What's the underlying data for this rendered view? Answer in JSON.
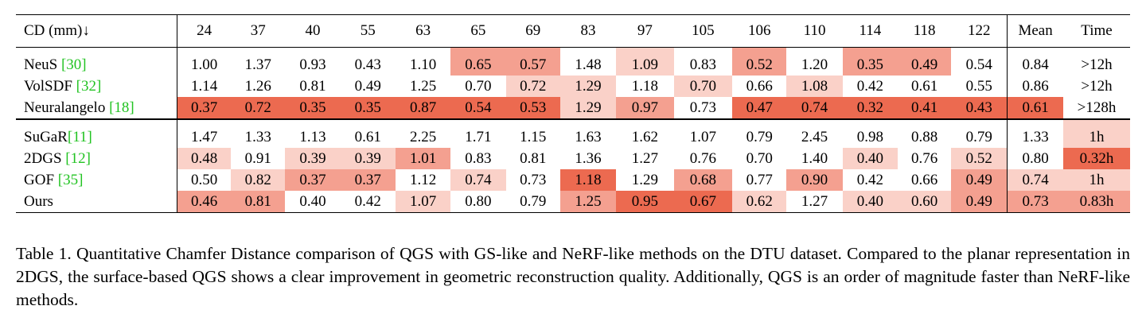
{
  "table": {
    "corner": "CD (mm)↓",
    "columns": [
      "24",
      "37",
      "40",
      "55",
      "63",
      "65",
      "69",
      "83",
      "97",
      "105",
      "106",
      "110",
      "114",
      "118",
      "122",
      "Mean",
      "Time"
    ],
    "groups": [
      [
        {
          "name": "NeuS ",
          "ref": "[30]",
          "cells": [
            "1.00",
            "1.37",
            "0.93",
            "0.43",
            "1.10",
            "0.65",
            "0.57",
            "1.48",
            "1.09",
            "0.83",
            "0.52",
            "1.20",
            "0.35",
            "0.49",
            "0.54",
            "0.84",
            ">12h"
          ],
          "shade": [
            0,
            0,
            0,
            0,
            0,
            2,
            2,
            0,
            3,
            0,
            2,
            0,
            2,
            2,
            0,
            0,
            0
          ]
        },
        {
          "name": "VolSDF ",
          "ref": "[32]",
          "cells": [
            "1.14",
            "1.26",
            "0.81",
            "0.49",
            "1.25",
            "0.70",
            "0.72",
            "1.29",
            "1.18",
            "0.70",
            "0.66",
            "1.08",
            "0.42",
            "0.61",
            "0.55",
            "0.86",
            ">12h"
          ],
          "shade": [
            0,
            0,
            0,
            0,
            0,
            0,
            3,
            3,
            0,
            3,
            0,
            3,
            0,
            0,
            0,
            0,
            0
          ]
        },
        {
          "name": "Neuralangelo ",
          "ref": "[18]",
          "cells": [
            "0.37",
            "0.72",
            "0.35",
            "0.35",
            "0.87",
            "0.54",
            "0.53",
            "1.29",
            "0.97",
            "0.73",
            "0.47",
            "0.74",
            "0.32",
            "0.41",
            "0.43",
            "0.61",
            ">128h"
          ],
          "shade": [
            1,
            1,
            1,
            1,
            1,
            1,
            1,
            3,
            2,
            0,
            1,
            1,
            1,
            1,
            1,
            1,
            0
          ]
        }
      ],
      [
        {
          "name": "SuGaR",
          "ref": "[11]",
          "cells": [
            "1.47",
            "1.33",
            "1.13",
            "0.61",
            "2.25",
            "1.71",
            "1.15",
            "1.63",
            "1.62",
            "1.07",
            "0.79",
            "2.45",
            "0.98",
            "0.88",
            "0.79",
            "1.33",
            "1h"
          ],
          "shade": [
            0,
            0,
            0,
            0,
            0,
            0,
            0,
            0,
            0,
            0,
            0,
            0,
            0,
            0,
            0,
            0,
            3
          ]
        },
        {
          "name": "2DGS ",
          "ref": "[12]",
          "cells": [
            "0.48",
            "0.91",
            "0.39",
            "0.39",
            "1.01",
            "0.83",
            "0.81",
            "1.36",
            "1.27",
            "0.76",
            "0.70",
            "1.40",
            "0.40",
            "0.76",
            "0.52",
            "0.80",
            "0.32h"
          ],
          "shade": [
            3,
            0,
            3,
            3,
            2,
            0,
            0,
            0,
            0,
            0,
            0,
            0,
            3,
            0,
            3,
            0,
            1
          ]
        },
        {
          "name": "GOF ",
          "ref": "[35]",
          "cells": [
            "0.50",
            "0.82",
            "0.37",
            "0.37",
            "1.12",
            "0.74",
            "0.73",
            "1.18",
            "1.29",
            "0.68",
            "0.77",
            "0.90",
            "0.42",
            "0.66",
            "0.49",
            "0.74",
            "1h"
          ],
          "shade": [
            0,
            3,
            2,
            2,
            0,
            3,
            0,
            1,
            0,
            2,
            0,
            2,
            0,
            0,
            2,
            3,
            3
          ]
        },
        {
          "name": "Ours",
          "ref": "",
          "cells": [
            "0.46",
            "0.81",
            "0.40",
            "0.42",
            "1.07",
            "0.80",
            "0.79",
            "1.25",
            "0.95",
            "0.67",
            "0.62",
            "1.27",
            "0.40",
            "0.60",
            "0.49",
            "0.73",
            "0.83h"
          ],
          "shade": [
            2,
            2,
            0,
            0,
            3,
            0,
            0,
            2,
            1,
            1,
            3,
            0,
            3,
            3,
            2,
            2,
            2
          ]
        }
      ]
    ]
  },
  "caption": "Table 1. Quantitative Chamfer Distance comparison of QGS with GS-like and NeRF-like methods on the DTU dataset. Compared to the planar representation in 2DGS, the surface-based QGS shows a clear improvement in geometric reconstruction quality. Additionally, QGS is an order of magnitude faster than NeRF-like methods.",
  "colors": {
    "best": "#ec6a50",
    "second": "#f4a090",
    "third": "#fad1c8",
    "ref": "#22c322"
  }
}
